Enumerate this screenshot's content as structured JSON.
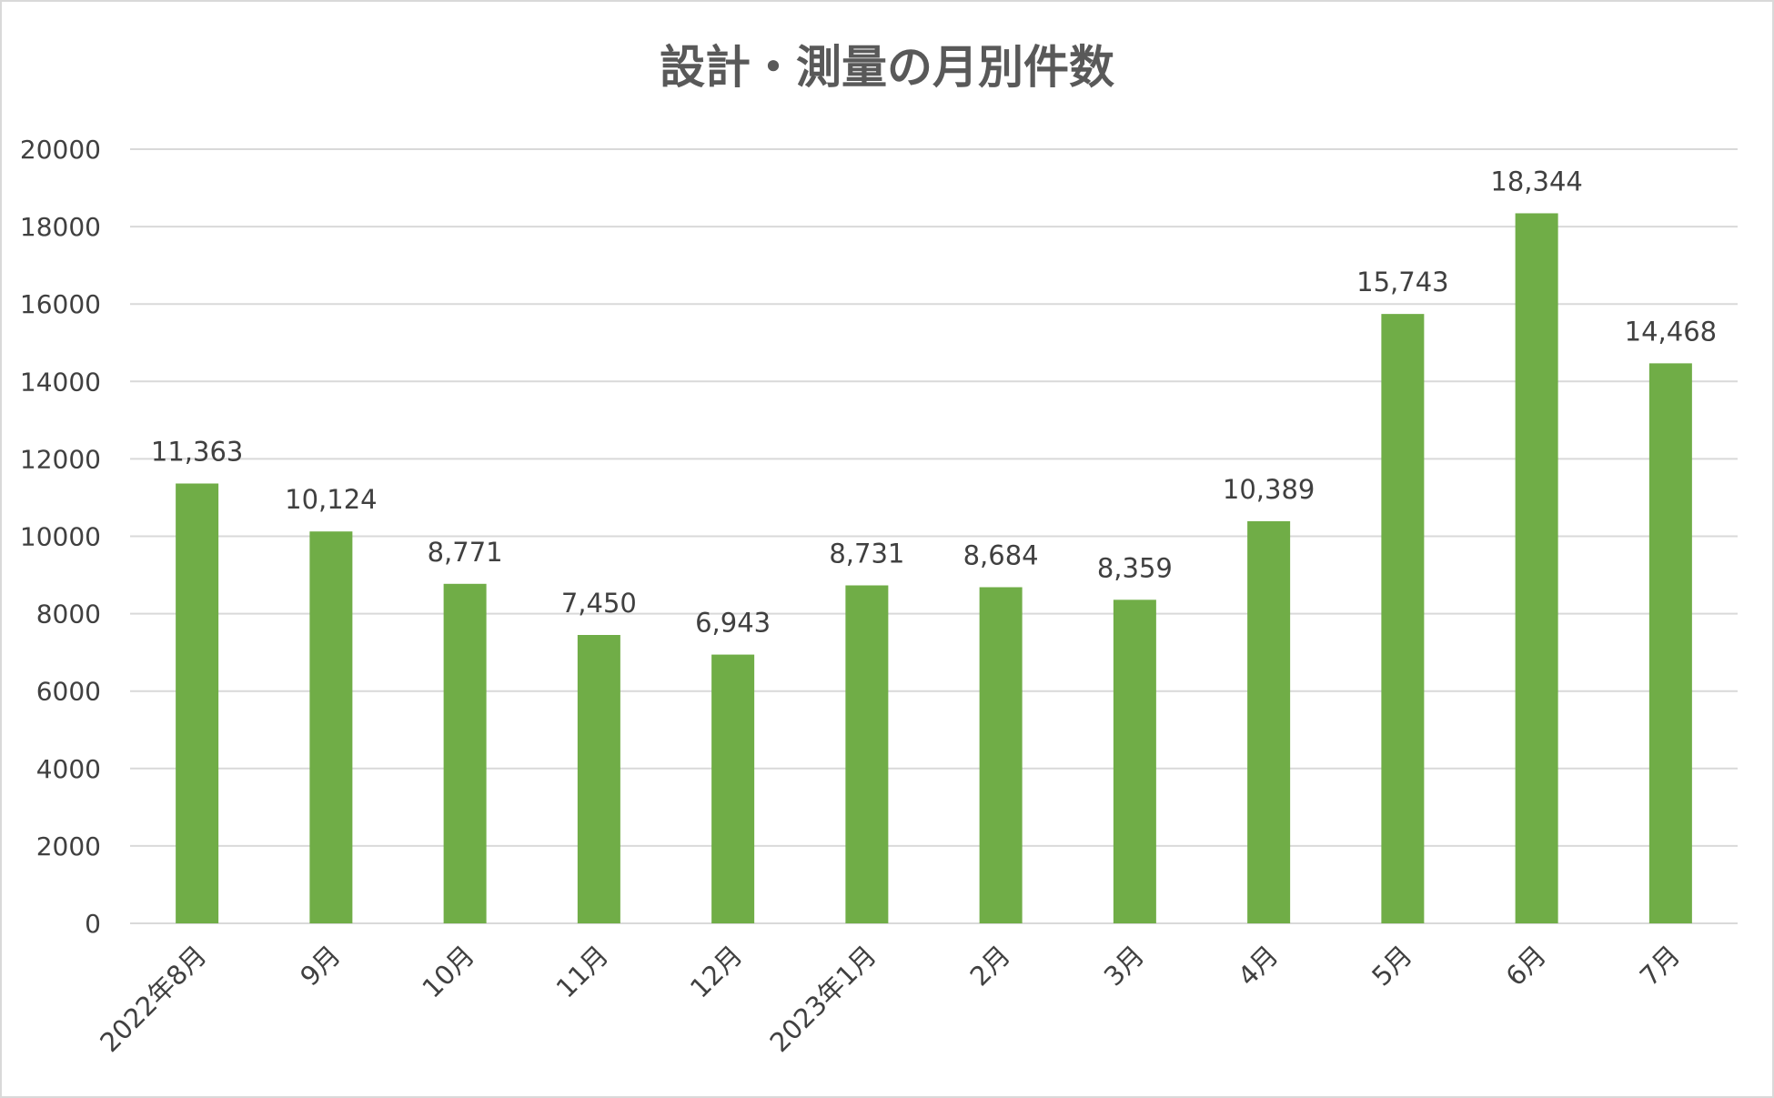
{
  "chart_data": {
    "type": "bar",
    "title": "設計・測量の月別件数",
    "xlabel": "",
    "ylabel": "",
    "categories": [
      "2022年8月",
      "9月",
      "10月",
      "11月",
      "12月",
      "2023年1月",
      "2月",
      "3月",
      "4月",
      "5月",
      "6月",
      "7月"
    ],
    "values": [
      11363,
      10124,
      8771,
      7450,
      6943,
      8731,
      8684,
      8359,
      10389,
      15743,
      18344,
      14468
    ],
    "data_labels": [
      "11,363",
      "10,124",
      "8,771",
      "7,450",
      "6,943",
      "8,731",
      "8,684",
      "8,359",
      "10,389",
      "15,743",
      "18,344",
      "14,468"
    ],
    "ylim": [
      0,
      20000
    ],
    "yticks": [
      "0",
      "2000",
      "4000",
      "6000",
      "8000",
      "10000",
      "12000",
      "14000",
      "16000",
      "18000",
      "20000"
    ],
    "grid": true,
    "legend": "none",
    "colors": {
      "bar": "#70ad47",
      "grid": "#d9d9d9",
      "text": "#404040",
      "title": "#595959"
    }
  }
}
